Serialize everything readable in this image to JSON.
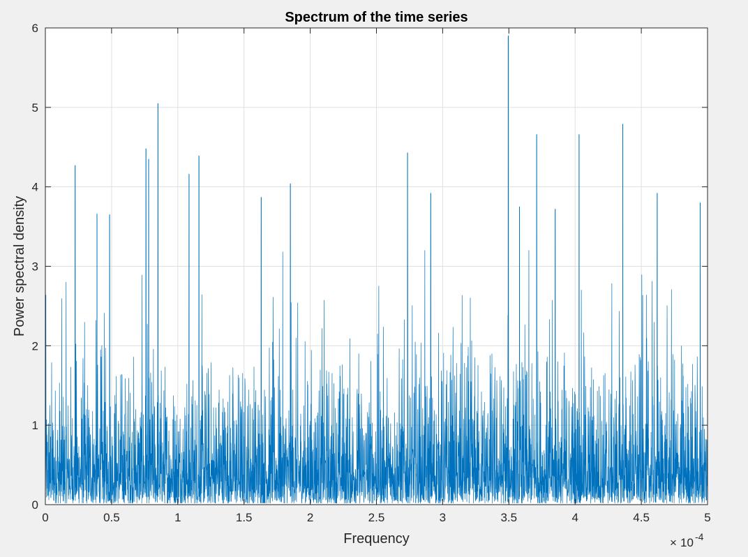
{
  "chart_data": {
    "type": "line",
    "title": "Spectrum of the time series",
    "xlabel": "Frequency",
    "ylabel": "Power spectral density",
    "x_multiplier": {
      "base": "10",
      "exponent": "-4"
    },
    "xlim": [
      0,
      0.0005
    ],
    "ylim": [
      0,
      6
    ],
    "xticks": [
      0,
      0.5,
      1,
      1.5,
      2,
      2.5,
      3,
      3.5,
      4,
      4.5,
      5
    ],
    "xtick_labels": [
      "0",
      "0.5",
      "1",
      "1.5",
      "2",
      "2.5",
      "3",
      "3.5",
      "4",
      "4.5",
      "5"
    ],
    "yticks": [
      0,
      1,
      2,
      3,
      4,
      5,
      6
    ],
    "ytick_labels": [
      "0",
      "1",
      "2",
      "3",
      "4",
      "5",
      "6"
    ],
    "grid": true,
    "series": [
      {
        "color": "#0072BD",
        "description": "Dense noisy power spectrum, mostly 0 to 1.5 with spikes up to about 5.9",
        "peaks": [
          {
            "x": 2.25e-05,
            "y": 4.27
          },
          {
            "x": 3.9e-05,
            "y": 3.66
          },
          {
            "x": 4.85e-05,
            "y": 3.65
          },
          {
            "x": 7.6e-05,
            "y": 4.48
          },
          {
            "x": 7.8e-05,
            "y": 4.35
          },
          {
            "x": 8.5e-05,
            "y": 5.05
          },
          {
            "x": 0.0001085,
            "y": 4.16
          },
          {
            "x": 0.000116,
            "y": 4.39
          },
          {
            "x": 0.000163,
            "y": 3.87
          },
          {
            "x": 0.000185,
            "y": 4.04
          },
          {
            "x": 0.0002735,
            "y": 4.43
          },
          {
            "x": 0.000291,
            "y": 3.92
          },
          {
            "x": 0.0003495,
            "y": 5.9
          },
          {
            "x": 0.000358,
            "y": 3.75
          },
          {
            "x": 0.000371,
            "y": 4.66
          },
          {
            "x": 0.000385,
            "y": 3.72
          },
          {
            "x": 0.000403,
            "y": 4.66
          },
          {
            "x": 0.000436,
            "y": 4.79
          },
          {
            "x": 0.000462,
            "y": 3.92
          },
          {
            "x": 0.0004945,
            "y": 3.8
          }
        ]
      }
    ]
  }
}
